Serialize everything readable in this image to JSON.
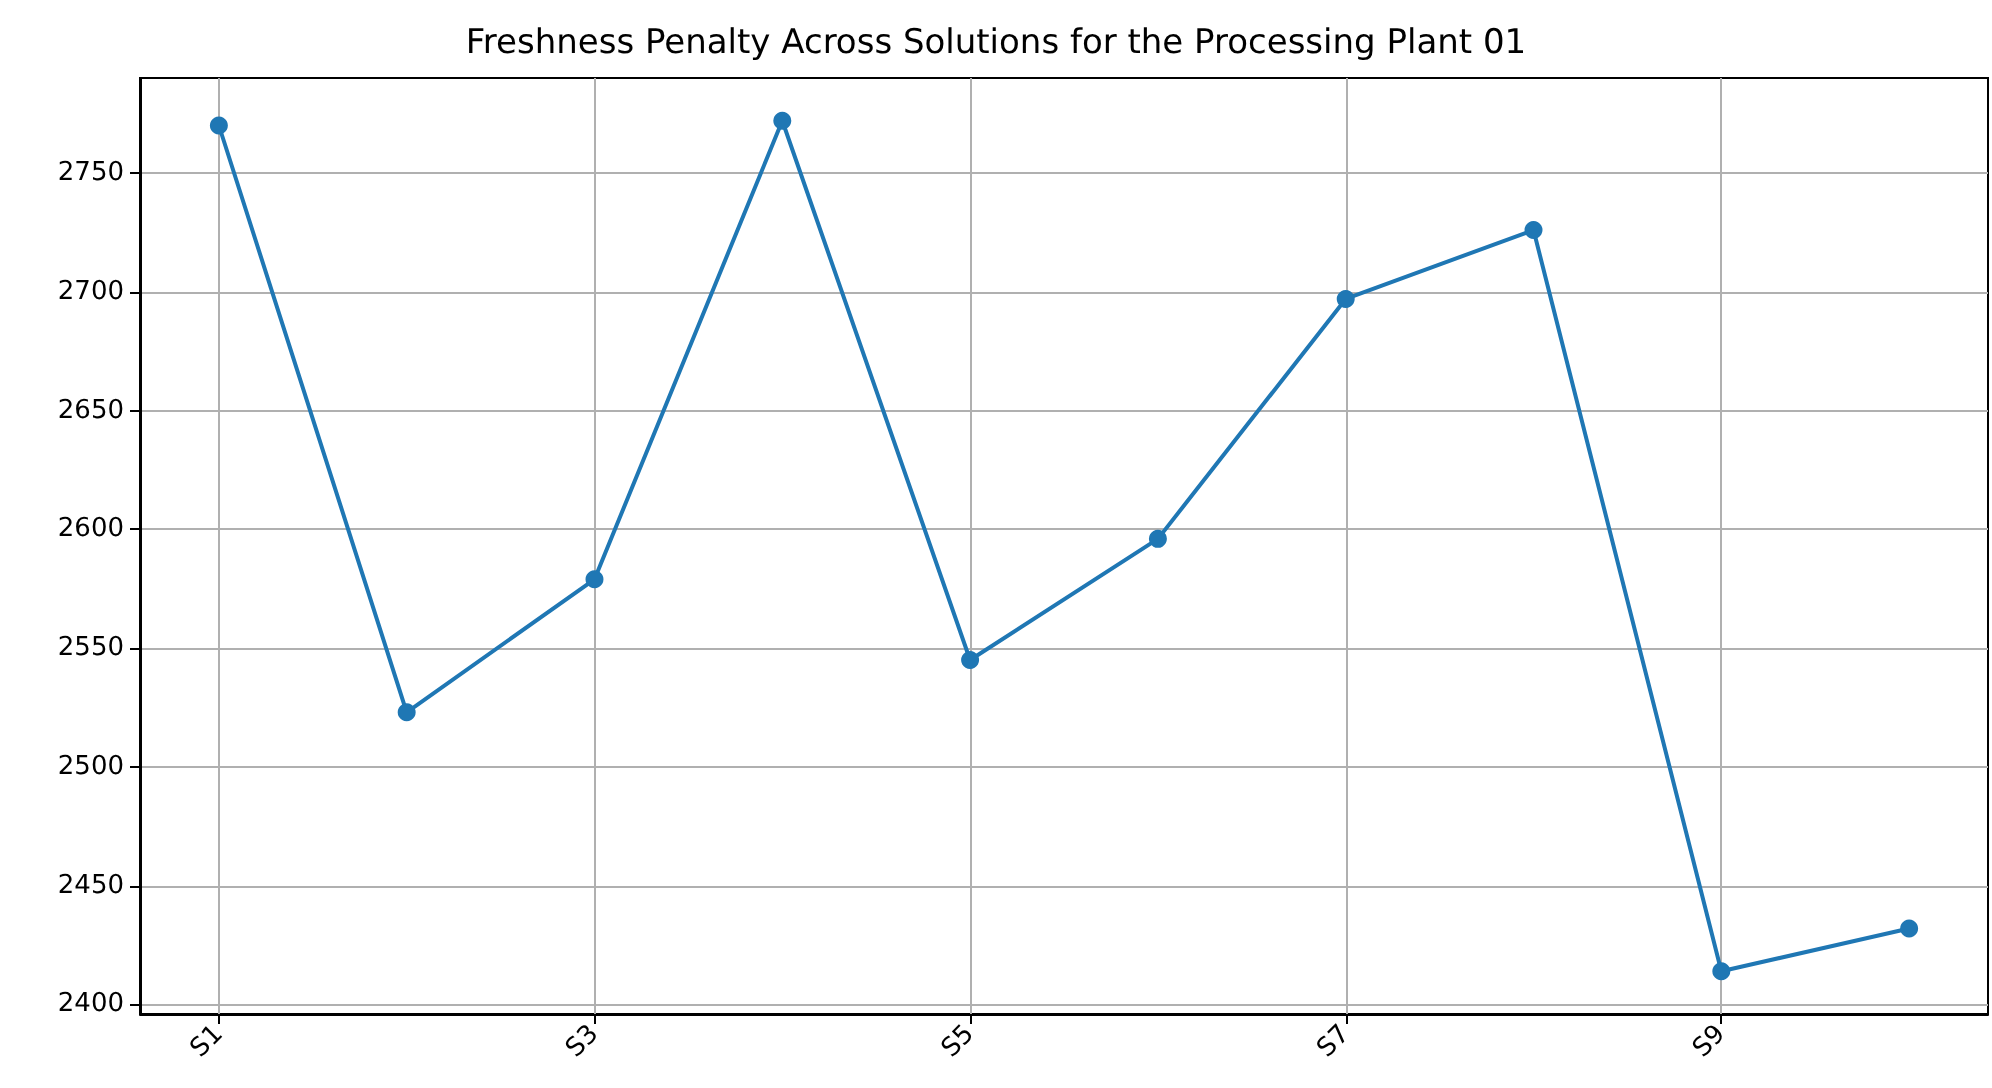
{
  "chart_data": {
    "type": "line",
    "title": "Freshness Penalty Across Solutions for the Processing Plant 01",
    "categories": [
      "S1",
      null,
      "S3",
      null,
      "S5",
      null,
      "S7",
      null,
      "S9",
      null
    ],
    "series": [
      {
        "color": "#1f77b4",
        "values": [
          2770,
          2523,
          2579,
          2772,
          2545,
          2596,
          2697,
          2726,
          2414,
          2432
        ]
      }
    ],
    "ylim": [
      2396,
      2790
    ],
    "yticks": [
      2400,
      2450,
      2500,
      2550,
      2600,
      2650,
      2700,
      2750
    ],
    "grid": true,
    "marker": "circle",
    "line_style": "solid"
  }
}
